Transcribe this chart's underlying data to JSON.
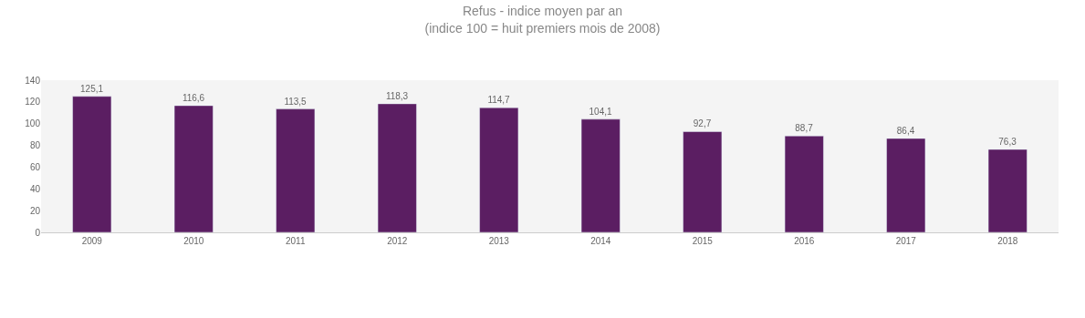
{
  "chart_data": {
    "type": "bar",
    "title": "Refus - indice moyen par an\n(indice 100 = huit premiers mois de 2008)",
    "categories": [
      "2009",
      "2010",
      "2011",
      "2012",
      "2013",
      "2014",
      "2015",
      "2016",
      "2017",
      "2018"
    ],
    "values": [
      125.1,
      116.6,
      113.5,
      118.3,
      114.7,
      104.1,
      92.7,
      88.7,
      86.4,
      76.3
    ],
    "value_labels": [
      "125,1",
      "116,6",
      "113,5",
      "118,3",
      "114,7",
      "104,1",
      "92,7",
      "88,7",
      "86,4",
      "76,3"
    ],
    "color": "#5b1e62",
    "ylim": [
      0,
      140
    ],
    "yticks": [
      0,
      20,
      40,
      60,
      80,
      100,
      120,
      140
    ],
    "grid": false,
    "legend": false
  }
}
